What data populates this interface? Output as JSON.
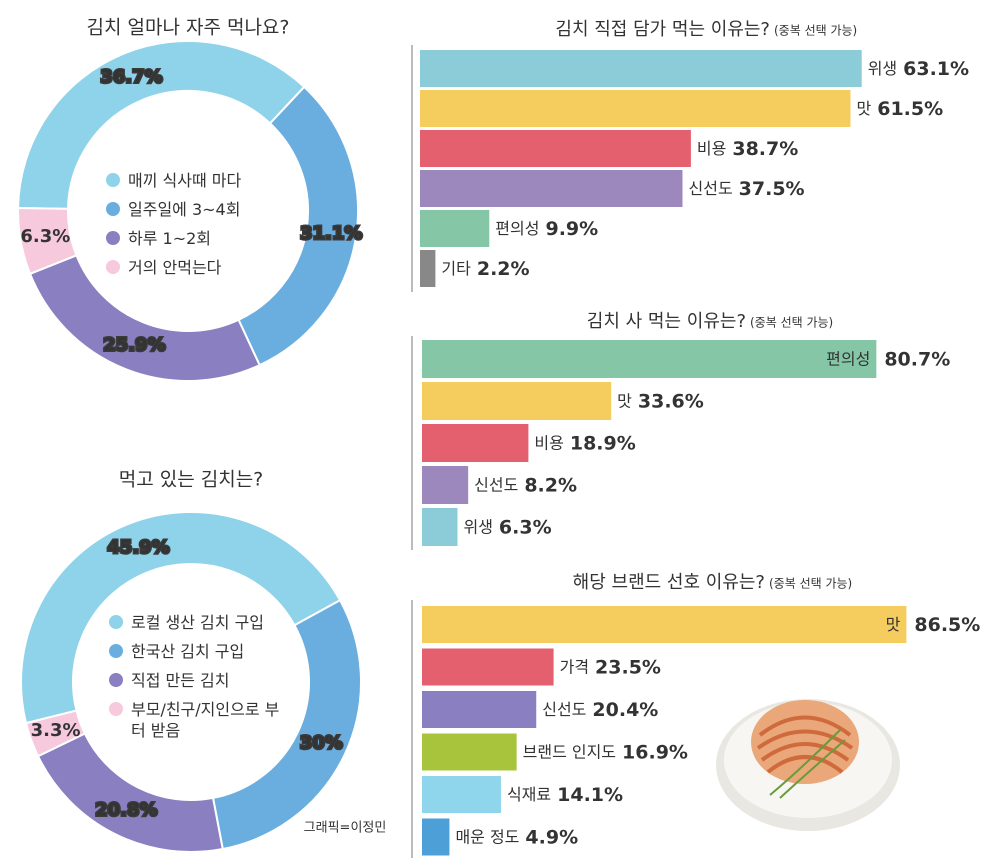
{
  "chart_data": [
    {
      "type": "donut",
      "title": "김치 얼마나 자주 먹나요?",
      "categories": [
        "매끼 식사때 마다",
        "일주일에 3~4회",
        "하루 1~2회",
        "거의 안먹는다"
      ],
      "values": [
        36.7,
        31.1,
        25.9,
        6.3
      ],
      "value_labels": [
        "36.7%",
        "31.1%",
        "25.9%",
        "6.3%"
      ],
      "colors": [
        "#8fd3ea",
        "#6aaee0",
        "#8a7fc0",
        "#f6c9dc"
      ]
    },
    {
      "type": "donut",
      "title": "먹고 있는 김치는?",
      "categories": [
        "로컬 생산 김치 구입",
        "한국산 김치 구입",
        "직접 만든 김치",
        "부모/친구/지인으로 부터 받음"
      ],
      "values": [
        45.9,
        30,
        20.8,
        3.3
      ],
      "value_labels": [
        "45.9%",
        "30%",
        "20.8%",
        "3.3%"
      ],
      "colors": [
        "#8fd3ea",
        "#6aaee0",
        "#8a7fc0",
        "#f6c9dc"
      ]
    },
    {
      "type": "bar",
      "title": "김치 직접 담가 먹는 이유는?",
      "subtitle": "(중복 선택 가능)",
      "categories": [
        "위생",
        "맛",
        "비용",
        "신선도",
        "편의성",
        "기타"
      ],
      "values": [
        63.1,
        61.5,
        38.7,
        37.5,
        9.9,
        2.2
      ],
      "value_labels": [
        "63.1%",
        "61.5%",
        "38.7%",
        "37.5%",
        "9.9%",
        "2.2%"
      ],
      "colors": [
        "#8ccbd8",
        "#f5cd5e",
        "#e5606e",
        "#9d88bd",
        "#84c6a6",
        "#888888"
      ]
    },
    {
      "type": "bar",
      "title": "김치 사 먹는 이유는?",
      "subtitle": "(중복 선택 가능)",
      "categories": [
        "편의성",
        "맛",
        "비용",
        "신선도",
        "위생"
      ],
      "values": [
        80.7,
        33.6,
        18.9,
        8.2,
        6.3
      ],
      "value_labels": [
        "80.7%",
        "33.6%",
        "18.9%",
        "8.2%",
        "6.3%"
      ],
      "colors": [
        "#84c6a6",
        "#f5cd5e",
        "#e5606e",
        "#9d88bd",
        "#8ccbd8"
      ]
    },
    {
      "type": "bar",
      "title": "해당 브랜드 선호 이유는?",
      "subtitle": "(중복 선택 가능)",
      "categories": [
        "맛",
        "가격",
        "신선도",
        "브랜드 인지도",
        "식재료",
        "매운 정도"
      ],
      "values": [
        86.5,
        23.5,
        20.4,
        16.9,
        14.1,
        4.9
      ],
      "value_labels": [
        "86.5%",
        "23.5%",
        "20.4%",
        "16.9%",
        "14.1%",
        "4.9%"
      ],
      "colors": [
        "#f5cd5e",
        "#e5606e",
        "#8a7fc0",
        "#a8c43c",
        "#8fd6ec",
        "#4d9fd8"
      ]
    }
  ],
  "credit": "그래픽=이정민"
}
